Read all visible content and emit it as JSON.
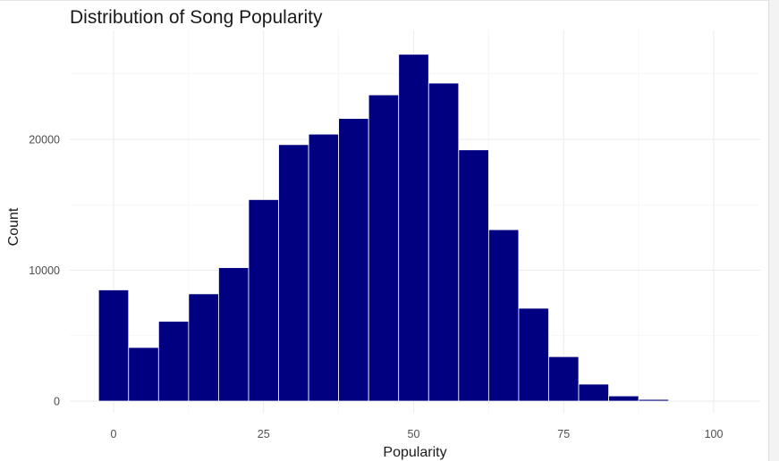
{
  "chart_data": {
    "type": "bar",
    "title": "Distribution of Song Popularity",
    "xlabel": "Popularity",
    "ylabel": "Count",
    "xlim": [
      -5.5,
      107.5
    ],
    "ylim": [
      0,
      28000
    ],
    "x_ticks": [
      0,
      25,
      50,
      75,
      100
    ],
    "y_ticks": [
      0,
      10000,
      20000
    ],
    "bin_width": 5,
    "bins": [
      {
        "x0": -2.5,
        "x1": 2.5,
        "count": 8500
      },
      {
        "x0": 2.5,
        "x1": 7.5,
        "count": 4100
      },
      {
        "x0": 7.5,
        "x1": 12.5,
        "count": 6100
      },
      {
        "x0": 12.5,
        "x1": 17.5,
        "count": 8200
      },
      {
        "x0": 17.5,
        "x1": 22.5,
        "count": 10200
      },
      {
        "x0": 22.5,
        "x1": 27.5,
        "count": 15400
      },
      {
        "x0": 27.5,
        "x1": 32.5,
        "count": 19600
      },
      {
        "x0": 32.5,
        "x1": 37.5,
        "count": 20400
      },
      {
        "x0": 37.5,
        "x1": 42.5,
        "count": 21600
      },
      {
        "x0": 42.5,
        "x1": 47.5,
        "count": 23400
      },
      {
        "x0": 47.5,
        "x1": 52.5,
        "count": 26500
      },
      {
        "x0": 52.5,
        "x1": 57.5,
        "count": 24300
      },
      {
        "x0": 57.5,
        "x1": 62.5,
        "count": 19200
      },
      {
        "x0": 62.5,
        "x1": 67.5,
        "count": 13100
      },
      {
        "x0": 67.5,
        "x1": 72.5,
        "count": 7100
      },
      {
        "x0": 72.5,
        "x1": 77.5,
        "count": 3400
      },
      {
        "x0": 77.5,
        "x1": 82.5,
        "count": 1300
      },
      {
        "x0": 82.5,
        "x1": 87.5,
        "count": 400
      },
      {
        "x0": 87.5,
        "x1": 92.5,
        "count": 130
      }
    ],
    "grid": true,
    "bar_fill": "#000080",
    "bar_stroke": "#ffffff",
    "grid_color": "#ebebeb",
    "legend": "none"
  }
}
